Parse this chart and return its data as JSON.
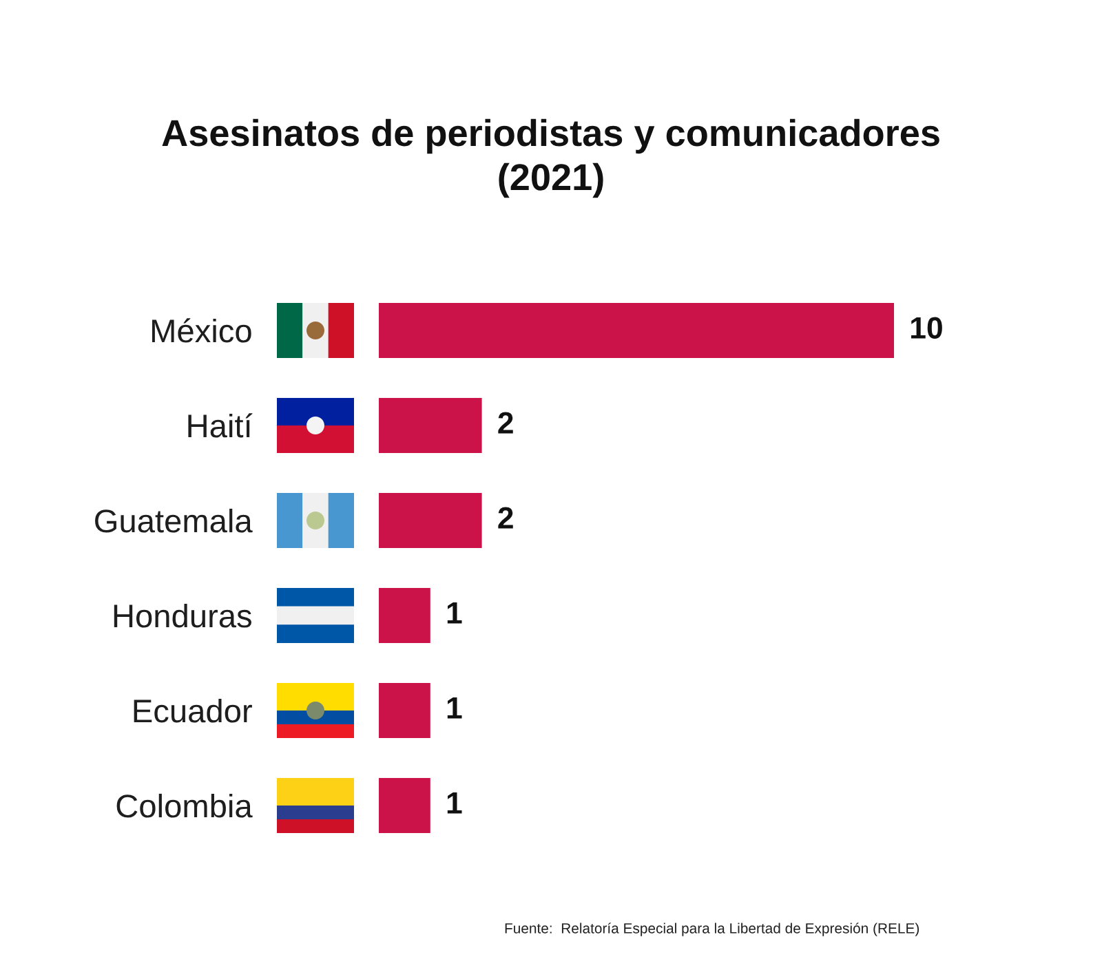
{
  "chart_data": {
    "type": "bar",
    "orientation": "horizontal",
    "title": "Asesinatos de periodistas y comunicadores\n(2021)",
    "categories": [
      "México",
      "Haití",
      "Guatemala",
      "Honduras",
      "Ecuador",
      "Colombia"
    ],
    "values": [
      10,
      2,
      2,
      1,
      1,
      1
    ],
    "color": "#cb1249",
    "data_labels": true,
    "tick_labels": "y",
    "annotations": [
      "Fuente:  Relatoría Especial para la Libertad de Expresión (RELE)"
    ]
  }
}
